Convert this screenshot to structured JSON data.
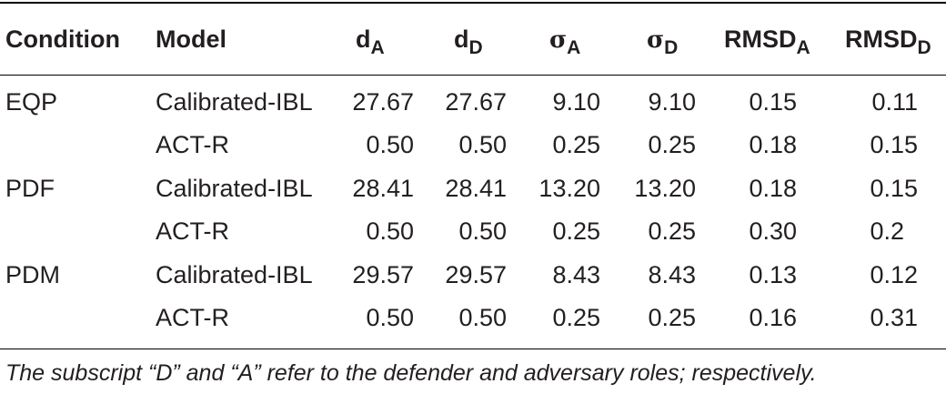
{
  "header": {
    "condition": "Condition",
    "model": "Model",
    "dA": {
      "base": "d",
      "sub": "A"
    },
    "dD": {
      "base": "d",
      "sub": "D"
    },
    "sigmaA": {
      "base": "σ",
      "sub": "A"
    },
    "sigmaD": {
      "base": "σ",
      "sub": "D"
    },
    "rmsdA": {
      "base": "RMSD",
      "sub": "A"
    },
    "rmsdD": {
      "base": "RMSD",
      "sub": "D"
    }
  },
  "rows": [
    {
      "condition": "EQP",
      "model": "Calibrated-IBL",
      "dA": "27.67",
      "dD": "27.67",
      "sigmaA": "9.10",
      "sigmaD": "9.10",
      "rmsdA": "0.15",
      "rmsdD": "0.11"
    },
    {
      "condition": "",
      "model": "ACT-R",
      "dA": "0.50",
      "dD": "0.50",
      "sigmaA": "0.25",
      "sigmaD": "0.25",
      "rmsdA": "0.18",
      "rmsdD": "0.15"
    },
    {
      "condition": "PDF",
      "model": "Calibrated-IBL",
      "dA": "28.41",
      "dD": "28.41",
      "sigmaA": "13.20",
      "sigmaD": "13.20",
      "rmsdA": "0.18",
      "rmsdD": "0.15"
    },
    {
      "condition": "",
      "model": "ACT-R",
      "dA": "0.50",
      "dD": "0.50",
      "sigmaA": "0.25",
      "sigmaD": "0.25",
      "rmsdA": "0.30",
      "rmsdD": "0.2"
    },
    {
      "condition": "PDM",
      "model": "Calibrated-IBL",
      "dA": "29.57",
      "dD": "29.57",
      "sigmaA": "8.43",
      "sigmaD": "8.43",
      "rmsdA": "0.13",
      "rmsdD": "0.12"
    },
    {
      "condition": "",
      "model": "ACT-R",
      "dA": "0.50",
      "dD": "0.50",
      "sigmaA": "0.25",
      "sigmaD": "0.25",
      "rmsdA": "0.16",
      "rmsdD": "0.31"
    }
  ],
  "footnote": "The subscript “D” and “A” refer to the defender and adversary roles; respectively."
}
